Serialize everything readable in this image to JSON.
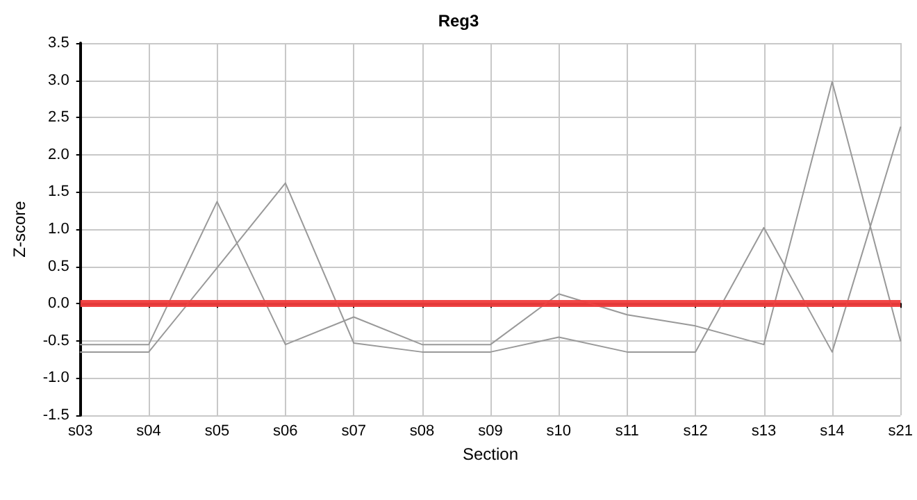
{
  "chart_data": {
    "type": "line",
    "title": "Reg3",
    "xlabel": "Section",
    "ylabel": "Z-score",
    "categories": [
      "s03",
      "s04",
      "s05",
      "s06",
      "s07",
      "s08",
      "s09",
      "s10",
      "s11",
      "s12",
      "s13",
      "s14",
      "s21"
    ],
    "series": [
      {
        "color": "#999999",
        "values": [
          -0.55,
          -0.55,
          1.37,
          -0.55,
          -0.18,
          -0.55,
          -0.55,
          0.13,
          -0.15,
          -0.3,
          -0.55,
          2.98,
          -0.5
        ]
      },
      {
        "color": "#999999",
        "values": [
          -0.65,
          -0.65,
          0.48,
          1.62,
          -0.53,
          -0.65,
          -0.65,
          -0.45,
          -0.65,
          -0.65,
          1.02,
          -0.65,
          2.37
        ]
      }
    ],
    "ylim": [
      -1.5,
      3.5
    ],
    "yticks": [
      -1.5,
      {
        "value": -1,
        "label": "-1.0"
      },
      -0.5,
      {
        "value": 0,
        "label": "0.0"
      },
      0.5,
      {
        "value": 1,
        "label": "1.0"
      },
      1.5,
      {
        "value": 2,
        "label": "2.0"
      },
      2.5,
      {
        "value": 3,
        "label": "3.0"
      },
      3.5
    ],
    "ref_lines": [
      {
        "axis": "y",
        "value": 0,
        "color": "#f03c3c"
      }
    ],
    "grid": true,
    "marker": "none",
    "line_style": "solid"
  }
}
